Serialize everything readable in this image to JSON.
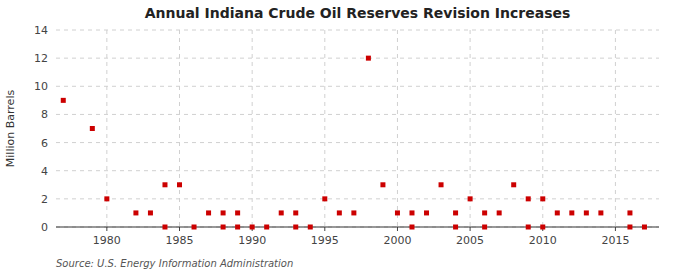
{
  "chart_data": {
    "type": "scatter",
    "title": "Annual Indiana Crude Oil Reserves Revision Increases",
    "ylabel": "Million Barrels",
    "source": "Source: U.S. Energy Information Administration",
    "xlim": [
      1976.5,
      2018
    ],
    "ylim": [
      0,
      14
    ],
    "yticks": [
      0,
      2,
      4,
      6,
      8,
      10,
      12,
      14
    ],
    "xticks": [
      1980,
      1985,
      1990,
      1995,
      2000,
      2005,
      2010,
      2015
    ],
    "grid": true,
    "color": "#cc0000",
    "marker": "square",
    "x": [
      1977,
      1979,
      1980,
      1982,
      1983,
      1984,
      1985,
      1984,
      1986,
      1987,
      1988,
      1988,
      1989,
      1989,
      1990,
      1991,
      1992,
      1993,
      1993,
      1994,
      1995,
      1996,
      1997,
      1998,
      1999,
      2000,
      2001,
      2001,
      2002,
      2003,
      2004,
      2004,
      2005,
      2006,
      2006,
      2007,
      2008,
      2009,
      2009,
      2010,
      2010,
      2011,
      2012,
      2013,
      2014,
      2016,
      2016,
      2017
    ],
    "y": [
      9,
      7,
      2,
      1,
      1,
      3,
      3,
      0,
      0,
      1,
      1,
      0,
      1,
      0,
      0,
      0,
      1,
      1,
      0,
      0,
      2,
      1,
      1,
      12,
      3,
      1,
      1,
      0,
      1,
      3,
      1,
      0,
      2,
      1,
      0,
      1,
      3,
      2,
      0,
      2,
      0,
      1,
      1,
      1,
      1,
      1,
      0,
      0
    ]
  }
}
